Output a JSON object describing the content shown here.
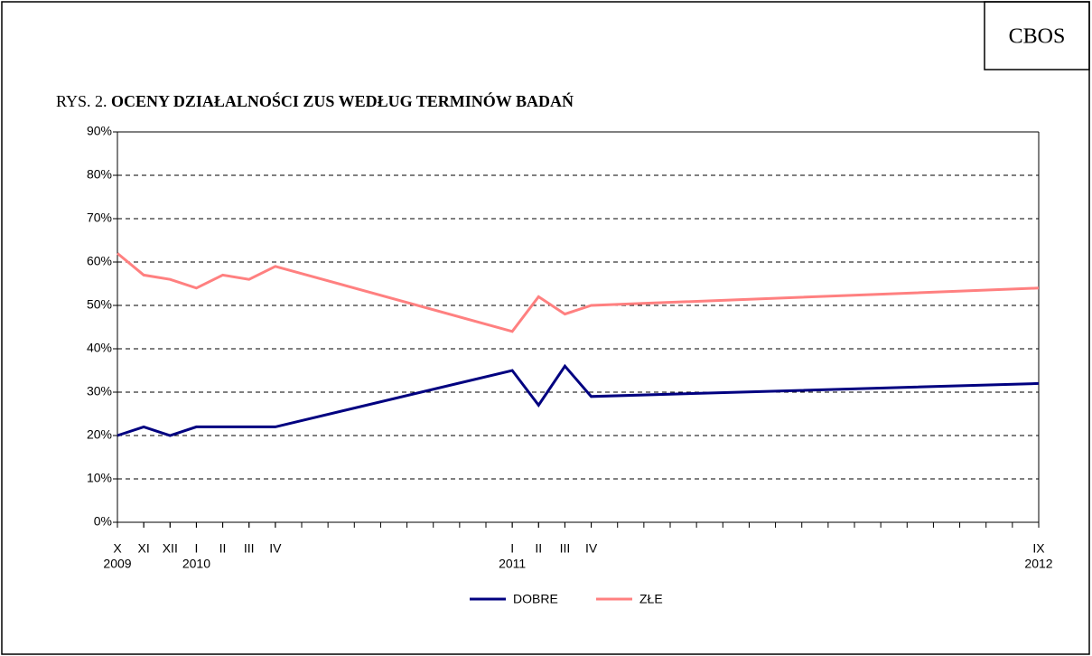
{
  "chart_data": {
    "type": "line",
    "badge": "CBOS",
    "title_prefix": "RYS. 2.",
    "title": "OCENY DZIAŁALNOŚCI ZUS WEDŁUG TERMINÓW BADAŃ",
    "x": [
      "2009-10",
      "2009-11",
      "2009-12",
      "2010-01",
      "2010-02",
      "2010-03",
      "2010-04",
      "2011-01",
      "2011-02",
      "2011-03",
      "2011-04",
      "2012-09"
    ],
    "series": [
      {
        "name": "DOBRE",
        "color": "#000080",
        "values": [
          20,
          22,
          20,
          22,
          22,
          22,
          22,
          35,
          27,
          36,
          29,
          32
        ]
      },
      {
        "name": "ZŁE",
        "color": "#ff8080",
        "values": [
          62,
          57,
          56,
          54,
          57,
          56,
          59,
          44,
          52,
          48,
          50,
          54
        ]
      }
    ],
    "xlim": [
      "2009-10",
      "2012-09"
    ],
    "xticks": [
      {
        "value": "2009-10",
        "label": "X"
      },
      {
        "value": "2009-11",
        "label": "XI"
      },
      {
        "value": "2009-12",
        "label": "XII"
      },
      {
        "value": "2010-01",
        "label": "I"
      },
      {
        "value": "2010-02",
        "label": "II"
      },
      {
        "value": "2010-03",
        "label": "III"
      },
      {
        "value": "2010-04",
        "label": "IV"
      },
      {
        "value": "2011-01",
        "label": "I"
      },
      {
        "value": "2011-02",
        "label": "II"
      },
      {
        "value": "2011-03",
        "label": "III"
      },
      {
        "value": "2011-04",
        "label": "IV"
      },
      {
        "value": "2012-09",
        "label": "IX"
      }
    ],
    "xtick_years": [
      {
        "value": "2009-10",
        "label": "2009"
      },
      {
        "value": "2010-01",
        "label": "2010"
      },
      {
        "value": "2011-01",
        "label": "2011"
      },
      {
        "value": "2012-09",
        "label": "2012"
      }
    ],
    "ylim": [
      0,
      90
    ],
    "yticks": [
      {
        "value": 0,
        "label": "0%"
      },
      {
        "value": 10,
        "label": "10%"
      },
      {
        "value": 20,
        "label": "20%"
      },
      {
        "value": 30,
        "label": "30%"
      },
      {
        "value": 40,
        "label": "40%"
      },
      {
        "value": 50,
        "label": "50%"
      },
      {
        "value": 60,
        "label": "60%"
      },
      {
        "value": 70,
        "label": "70%"
      },
      {
        "value": 80,
        "label": "80%"
      },
      {
        "value": 90,
        "label": "90%"
      }
    ],
    "grid": true,
    "legend": "bottom"
  }
}
